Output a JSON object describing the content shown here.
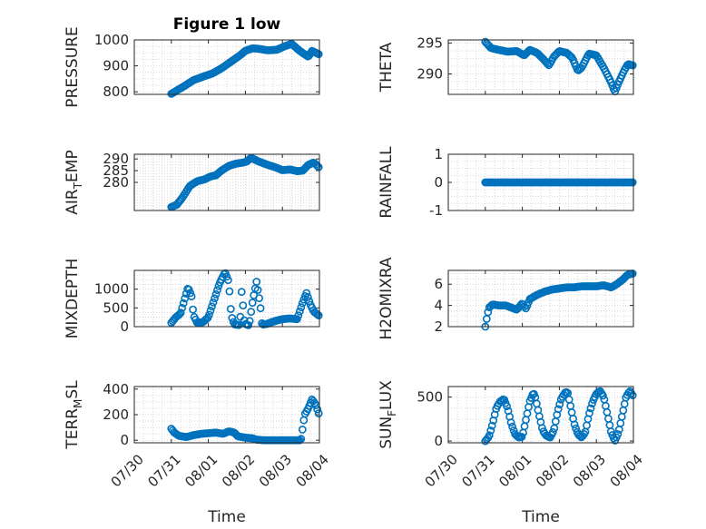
{
  "figure": {
    "title": "Figure 1 low"
  },
  "chart_data": [
    {
      "type": "scatter",
      "title": "Figure 1 low",
      "ylabel": "PRESSURE",
      "xlabel": "",
      "x_range_days": [
        0,
        5
      ],
      "ylim": [
        790,
        1000
      ],
      "yticks": [
        800,
        900,
        1000
      ],
      "grid": true,
      "series": [
        {
          "color": "#0072BD",
          "start_day": 1.0,
          "end_day": 4.98,
          "keypoints": [
            [
              1.0,
              792
            ],
            [
              1.15,
              805
            ],
            [
              1.35,
              822
            ],
            [
              1.6,
              845
            ],
            [
              1.85,
              858
            ],
            [
              2.1,
              870
            ],
            [
              2.35,
              890
            ],
            [
              2.6,
              915
            ],
            [
              2.85,
              940
            ],
            [
              3.0,
              958
            ],
            [
              3.2,
              968
            ],
            [
              3.4,
              965
            ],
            [
              3.6,
              960
            ],
            [
              3.85,
              962
            ],
            [
              4.05,
              975
            ],
            [
              4.25,
              985
            ],
            [
              4.45,
              960
            ],
            [
              4.6,
              945
            ],
            [
              4.7,
              935
            ],
            [
              4.8,
              958
            ],
            [
              4.98,
              945
            ]
          ]
        }
      ]
    },
    {
      "type": "scatter",
      "ylabel": "THETA",
      "xlabel": "",
      "x_range_days": [
        0,
        5
      ],
      "ylim": [
        286.7,
        295.5
      ],
      "yticks": [
        290,
        295
      ],
      "grid": true,
      "series": [
        {
          "color": "#0072BD",
          "start_day": 1.0,
          "end_day": 4.98,
          "keypoints": [
            [
              1.0,
              295.2
            ],
            [
              1.15,
              294.2
            ],
            [
              1.35,
              293.9
            ],
            [
              1.6,
              293.6
            ],
            [
              1.85,
              293.7
            ],
            [
              2.05,
              293.0
            ],
            [
              2.2,
              293.9
            ],
            [
              2.4,
              293.4
            ],
            [
              2.6,
              292.2
            ],
            [
              2.72,
              291.4
            ],
            [
              2.85,
              292.8
            ],
            [
              3.0,
              293.7
            ],
            [
              3.2,
              293.4
            ],
            [
              3.35,
              292.6
            ],
            [
              3.5,
              290.5
            ],
            [
              3.6,
              291.0
            ],
            [
              3.8,
              293.3
            ],
            [
              4.0,
              293.0
            ],
            [
              4.2,
              291.0
            ],
            [
              4.4,
              288.6
            ],
            [
              4.5,
              287.1
            ],
            [
              4.6,
              288.6
            ],
            [
              4.72,
              290.2
            ],
            [
              4.85,
              291.6
            ],
            [
              4.98,
              291.4
            ]
          ]
        }
      ]
    },
    {
      "type": "scatter",
      "ylabel": "AIR_TEMP",
      "xlabel": "",
      "x_range_days": [
        0,
        5
      ],
      "ylim": [
        268,
        292
      ],
      "yticks": [
        280,
        285,
        290
      ],
      "grid": true,
      "series": [
        {
          "color": "#0072BD",
          "start_day": 1.0,
          "end_day": 4.98,
          "keypoints": [
            [
              1.0,
              269.5
            ],
            [
              1.15,
              270.5
            ],
            [
              1.3,
              273.5
            ],
            [
              1.5,
              278.5
            ],
            [
              1.7,
              280.5
            ],
            [
              1.9,
              281.3
            ],
            [
              2.05,
              282.5
            ],
            [
              2.2,
              283.0
            ],
            [
              2.35,
              285.0
            ],
            [
              2.55,
              287.0
            ],
            [
              2.75,
              288.0
            ],
            [
              2.95,
              288.5
            ],
            [
              3.05,
              289.0
            ],
            [
              3.15,
              290.5
            ],
            [
              3.35,
              289.0
            ],
            [
              3.6,
              287.5
            ],
            [
              3.8,
              286.5
            ],
            [
              4.0,
              285.2
            ],
            [
              4.2,
              285.5
            ],
            [
              4.4,
              284.8
            ],
            [
              4.55,
              285.0
            ],
            [
              4.7,
              287.5
            ],
            [
              4.85,
              288.5
            ],
            [
              4.98,
              286.5
            ]
          ]
        }
      ]
    },
    {
      "type": "scatter",
      "ylabel": "RAINFALL",
      "xlabel": "",
      "x_range_days": [
        0,
        5
      ],
      "ylim": [
        -1,
        1
      ],
      "yticks": [
        -1,
        0,
        1
      ],
      "grid": true,
      "series": [
        {
          "color": "#0072BD",
          "start_day": 1.0,
          "end_day": 4.98,
          "keypoints": [
            [
              1.0,
              0
            ],
            [
              4.98,
              0
            ]
          ]
        }
      ]
    },
    {
      "type": "scatter",
      "ylabel": "MIXDEPTH",
      "xlabel": "",
      "x_range_days": [
        0,
        5
      ],
      "ylim": [
        0,
        1500
      ],
      "yticks": [
        0,
        500,
        1000
      ],
      "grid": true,
      "series": [
        {
          "color": "#0072BD",
          "start_day": 1.0,
          "end_day": 4.98,
          "keypoints": [
            [
              1.0,
              100
            ],
            [
              1.12,
              250
            ],
            [
              1.25,
              350
            ],
            [
              1.35,
              700
            ],
            [
              1.45,
              1050
            ],
            [
              1.55,
              800
            ],
            [
              1.6,
              300
            ],
            [
              1.7,
              100
            ],
            [
              1.85,
              120
            ],
            [
              2.0,
              250
            ],
            [
              2.15,
              700
            ],
            [
              2.3,
              1150
            ],
            [
              2.45,
              1450
            ],
            [
              2.55,
              1200
            ],
            [
              2.62,
              300
            ],
            [
              2.7,
              60
            ],
            [
              2.85,
              40
            ],
            [
              2.9,
              950
            ],
            [
              2.98,
              80
            ],
            [
              3.1,
              30
            ],
            [
              3.2,
              700
            ],
            [
              3.3,
              1200
            ],
            [
              3.4,
              600
            ],
            [
              3.45,
              50
            ],
            [
              3.6,
              80
            ],
            [
              3.8,
              150
            ],
            [
              4.0,
              200
            ],
            [
              4.2,
              220
            ],
            [
              4.4,
              200
            ],
            [
              4.55,
              650
            ],
            [
              4.65,
              900
            ],
            [
              4.75,
              600
            ],
            [
              4.85,
              400
            ],
            [
              4.98,
              300
            ]
          ]
        }
      ]
    },
    {
      "type": "scatter",
      "ylabel": "H2OMIXRA",
      "xlabel": "",
      "x_range_days": [
        0,
        5
      ],
      "ylim": [
        2,
        7.3
      ],
      "yticks": [
        2,
        4,
        6
      ],
      "grid": true,
      "series": [
        {
          "color": "#0072BD",
          "start_day": 1.0,
          "end_day": 4.98,
          "keypoints": [
            [
              1.0,
              2.0
            ],
            [
              1.05,
              3.0
            ],
            [
              1.1,
              3.8
            ],
            [
              1.2,
              4.1
            ],
            [
              1.35,
              4.0
            ],
            [
              1.55,
              4.0
            ],
            [
              1.7,
              3.8
            ],
            [
              1.85,
              3.6
            ],
            [
              2.0,
              4.2
            ],
            [
              2.1,
              3.7
            ],
            [
              2.2,
              4.6
            ],
            [
              2.4,
              5.0
            ],
            [
              2.6,
              5.3
            ],
            [
              2.8,
              5.5
            ],
            [
              3.0,
              5.6
            ],
            [
              3.2,
              5.7
            ],
            [
              3.4,
              5.7
            ],
            [
              3.6,
              5.8
            ],
            [
              3.8,
              5.8
            ],
            [
              4.0,
              5.8
            ],
            [
              4.2,
              5.9
            ],
            [
              4.4,
              5.7
            ],
            [
              4.55,
              6.0
            ],
            [
              4.7,
              6.4
            ],
            [
              4.85,
              6.9
            ],
            [
              4.98,
              7.0
            ]
          ]
        }
      ]
    },
    {
      "type": "scatter",
      "ylabel": "TERR_MSL",
      "xlabel": "Time",
      "x_range_days": [
        0,
        5
      ],
      "xticks": [
        "07/30",
        "07/31",
        "08/01",
        "08/02",
        "08/03",
        "08/04"
      ],
      "ylim": [
        -20,
        420
      ],
      "yticks": [
        0,
        200,
        400
      ],
      "grid": true,
      "series": [
        {
          "color": "#0072BD",
          "start_day": 1.0,
          "end_day": 4.98,
          "keypoints": [
            [
              1.0,
              90
            ],
            [
              1.08,
              60
            ],
            [
              1.2,
              35
            ],
            [
              1.4,
              25
            ],
            [
              1.6,
              40
            ],
            [
              1.8,
              50
            ],
            [
              2.0,
              55
            ],
            [
              2.2,
              60
            ],
            [
              2.4,
              50
            ],
            [
              2.55,
              70
            ],
            [
              2.7,
              60
            ],
            [
              2.8,
              30
            ],
            [
              3.0,
              20
            ],
            [
              3.2,
              15
            ],
            [
              3.3,
              5
            ],
            [
              3.5,
              0
            ],
            [
              3.8,
              0
            ],
            [
              4.0,
              0
            ],
            [
              4.3,
              0
            ],
            [
              4.5,
              0
            ],
            [
              4.6,
              200
            ],
            [
              4.7,
              250
            ],
            [
              4.8,
              320
            ],
            [
              4.9,
              280
            ],
            [
              4.98,
              210
            ]
          ]
        }
      ]
    },
    {
      "type": "scatter",
      "ylabel": "SUN_FLUX",
      "xlabel": "Time",
      "x_range_days": [
        0,
        5
      ],
      "xticks": [
        "07/30",
        "07/31",
        "08/01",
        "08/02",
        "08/03",
        "08/04"
      ],
      "ylim": [
        -20,
        620
      ],
      "yticks": [
        0,
        500
      ],
      "grid": true,
      "series": [
        {
          "color": "#0072BD",
          "start_day": 1.0,
          "end_day": 4.98,
          "keypoints": [
            [
              1.0,
              0
            ],
            [
              1.1,
              50
            ],
            [
              1.2,
              200
            ],
            [
              1.3,
              380
            ],
            [
              1.4,
              450
            ],
            [
              1.5,
              480
            ],
            [
              1.6,
              380
            ],
            [
              1.7,
              200
            ],
            [
              1.8,
              80
            ],
            [
              1.9,
              40
            ],
            [
              2.0,
              50
            ],
            [
              2.1,
              250
            ],
            [
              2.2,
              450
            ],
            [
              2.3,
              550
            ],
            [
              2.35,
              500
            ],
            [
              2.45,
              300
            ],
            [
              2.55,
              120
            ],
            [
              2.65,
              60
            ],
            [
              2.75,
              40
            ],
            [
              2.85,
              120
            ],
            [
              2.95,
              330
            ],
            [
              3.05,
              480
            ],
            [
              3.15,
              550
            ],
            [
              3.22,
              560
            ],
            [
              3.3,
              400
            ],
            [
              3.4,
              200
            ],
            [
              3.5,
              80
            ],
            [
              3.6,
              40
            ],
            [
              3.7,
              100
            ],
            [
              3.8,
              300
            ],
            [
              3.9,
              450
            ],
            [
              4.0,
              540
            ],
            [
              4.1,
              570
            ],
            [
              4.2,
              500
            ],
            [
              4.3,
              300
            ],
            [
              4.4,
              100
            ],
            [
              4.5,
              0
            ],
            [
              4.6,
              100
            ],
            [
              4.7,
              300
            ],
            [
              4.8,
              500
            ],
            [
              4.9,
              570
            ],
            [
              4.98,
              520
            ]
          ]
        }
      ]
    }
  ]
}
